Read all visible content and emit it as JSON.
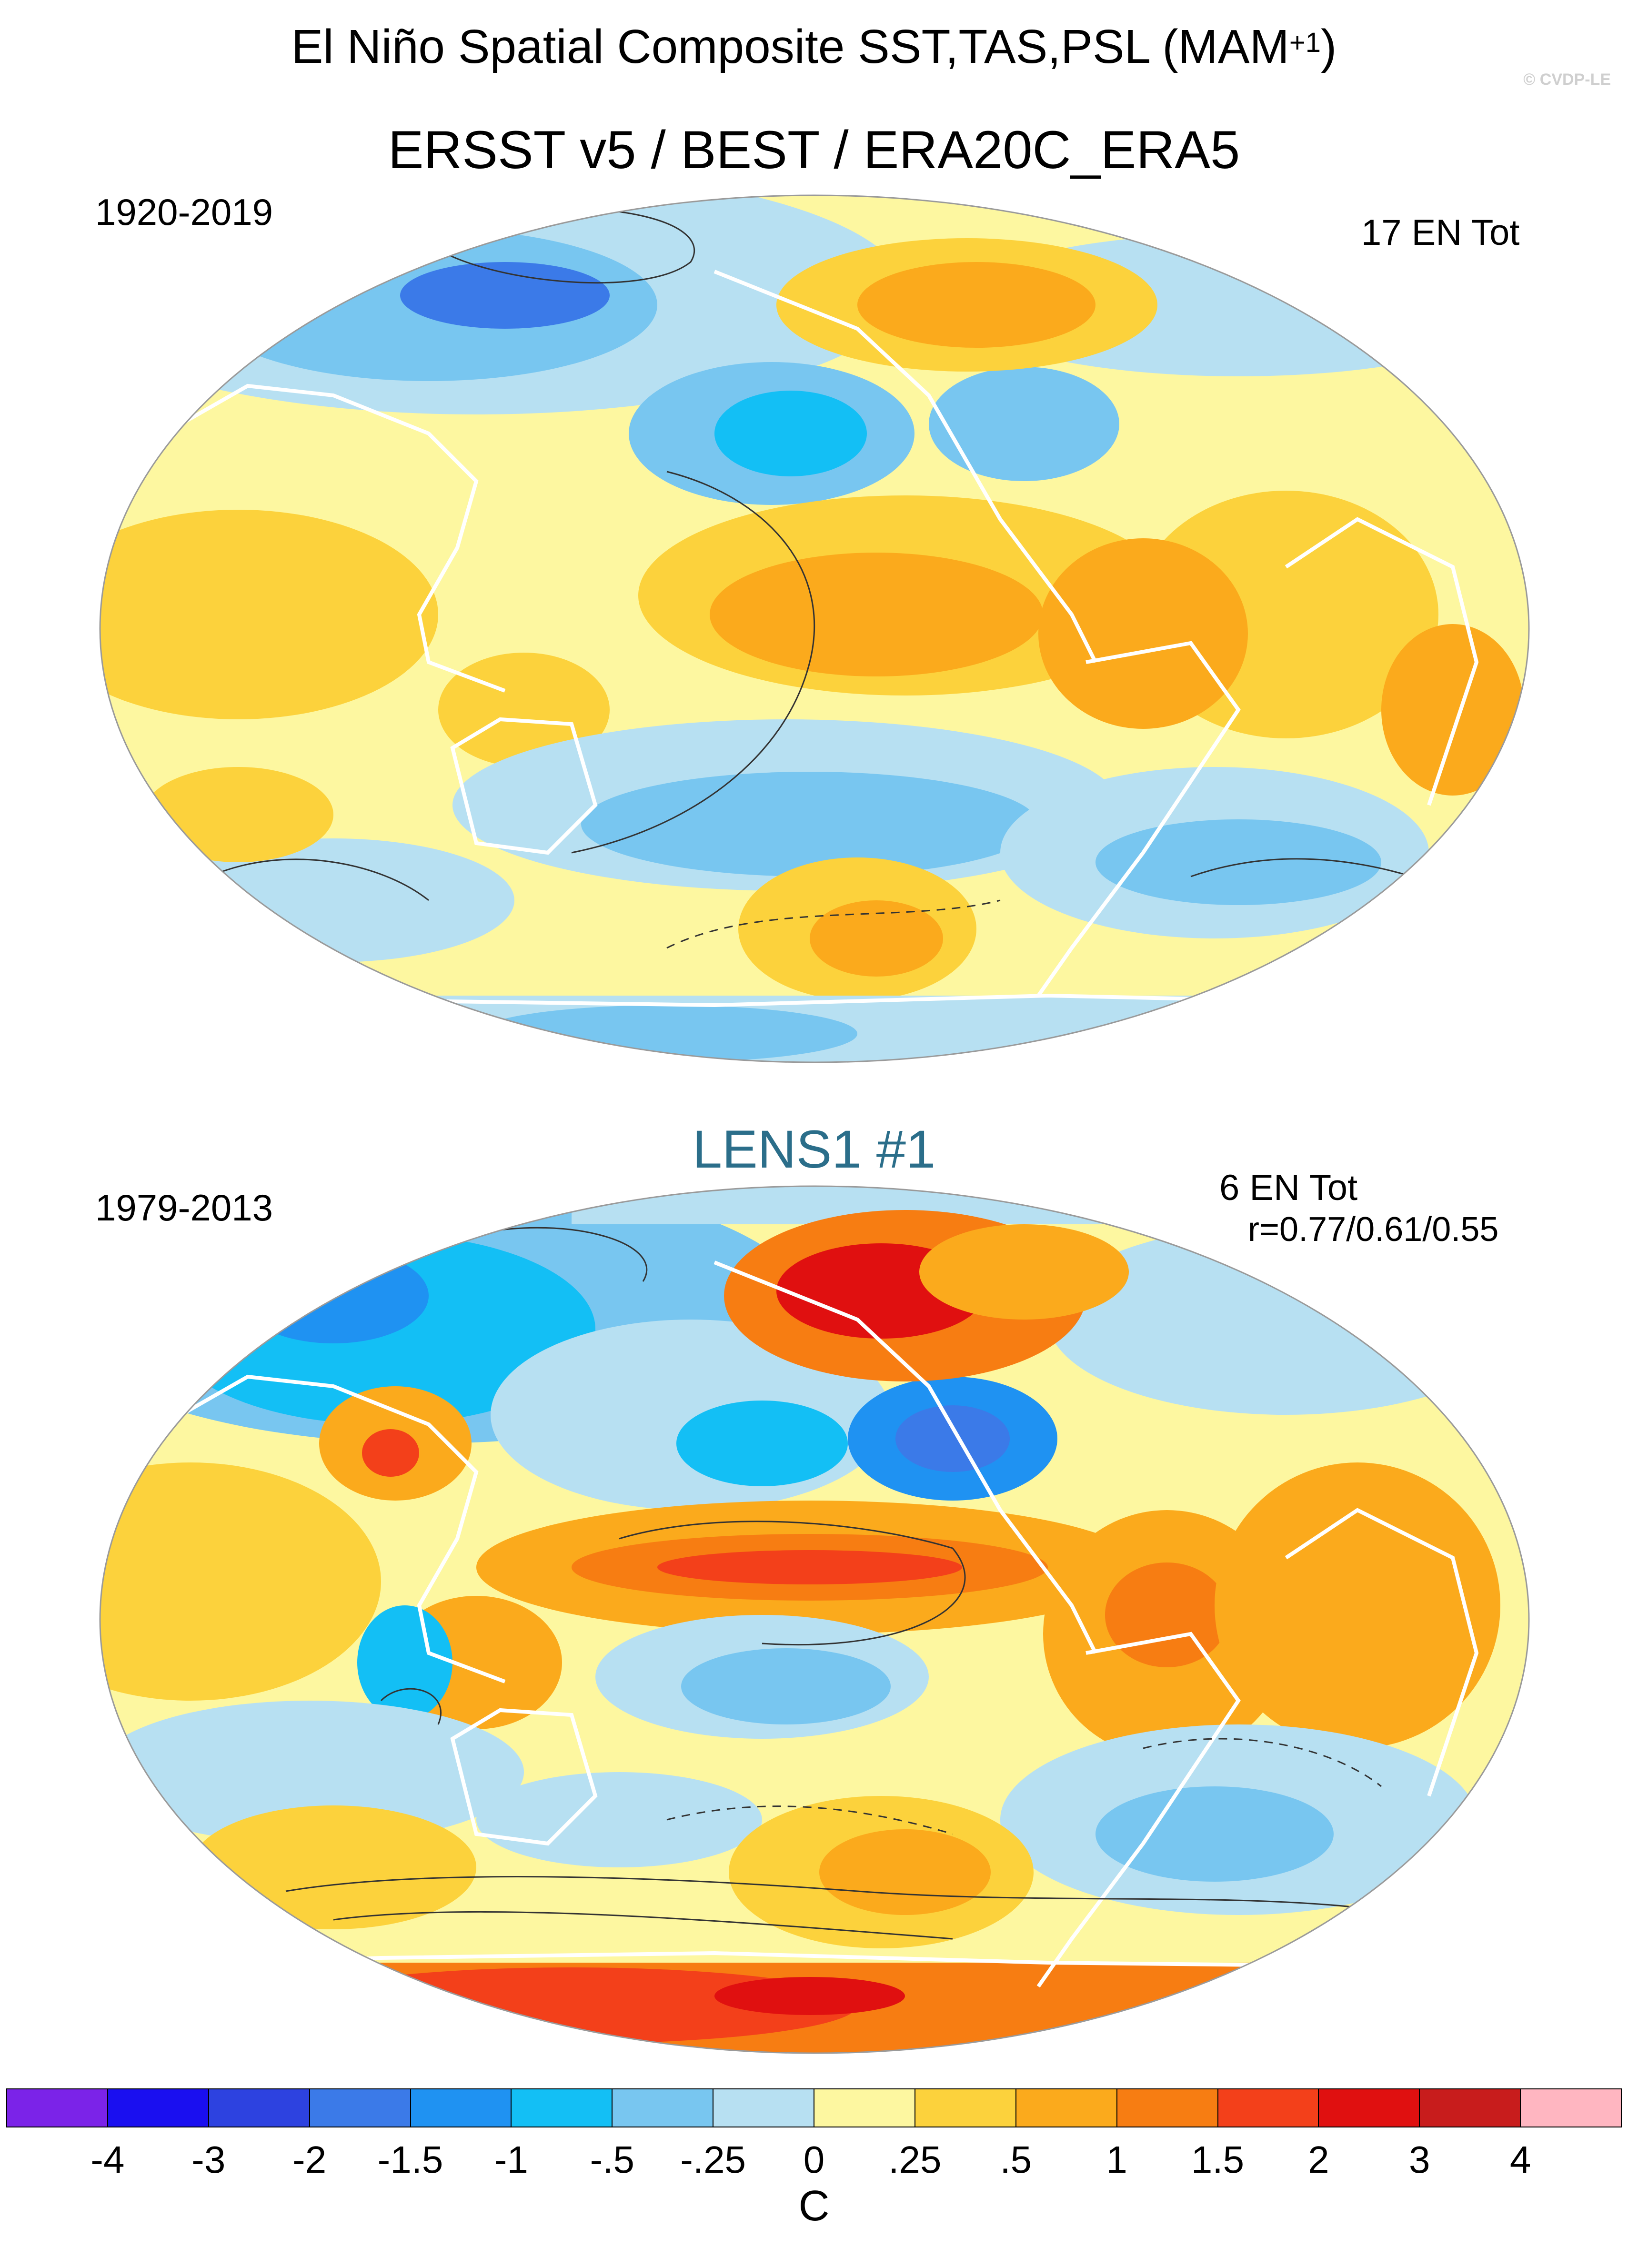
{
  "figure": {
    "title_main": "El Niño Spatial Composite SST,TAS,PSL (MAM",
    "title_sup": "+1",
    "title_close": ")",
    "copyright": "© CVDP-LE"
  },
  "panels": [
    {
      "subtitle": "ERSST v5 / BEST / ERA20C_ERA5",
      "period": "1920-2019",
      "count": "17 EN Tot",
      "correlation": ""
    },
    {
      "subtitle": "LENS1 #1",
      "period": "1979-2013",
      "count": "6 EN Tot",
      "correlation": "r=0.77/0.61/0.55"
    }
  ],
  "colorbar": {
    "unit": "C",
    "ticks": [
      "-4",
      "-3",
      "-2",
      "-1.5",
      "-1",
      "-.5",
      "-.25",
      "0",
      ".25",
      ".5",
      "1",
      "1.5",
      "2",
      "3",
      "4"
    ],
    "colors": [
      "#7b23e8",
      "#1a0ff0",
      "#2d42e0",
      "#3b7ae8",
      "#1f92f2",
      "#13bff5",
      "#78c6f0",
      "#b7e0f2",
      "#fdf7a0",
      "#fcd23c",
      "#fbaa1c",
      "#f77d12",
      "#f3401a",
      "#e01010",
      "#c81c1c",
      "#ffb6c1"
    ],
    "palette": {
      "land_outline": "#ffffff",
      "contour": "#333333",
      "title_lens": "#2b6e8a"
    }
  }
}
